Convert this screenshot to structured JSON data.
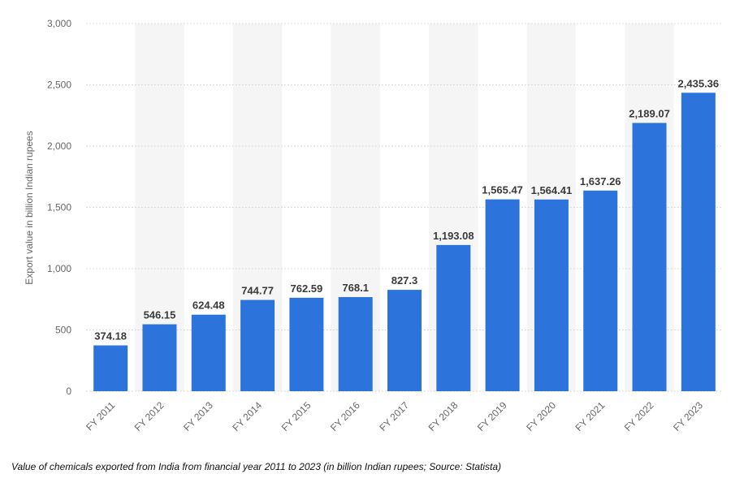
{
  "chart_data": {
    "type": "bar",
    "categories": [
      "FY 2011",
      "FY 2012",
      "FY 2013",
      "FY 2014",
      "FY 2015",
      "FY 2016",
      "FY 2017",
      "FY 2018",
      "FY 2019",
      "FY 2020",
      "FY 2021",
      "FY 2022",
      "FY 2023"
    ],
    "values": [
      374.18,
      546.15,
      624.48,
      744.77,
      762.59,
      768.1,
      827.3,
      1193.08,
      1565.47,
      1564.41,
      1637.26,
      2189.07,
      2435.36
    ],
    "data_labels": [
      "374.18",
      "546.15",
      "624.48",
      "744.77",
      "762.59",
      "768.1",
      "827.3",
      "1,193.08",
      "1,565.47",
      "1,564.41",
      "1,637.26",
      "2,189.07",
      "2,435.36"
    ],
    "ylabel": "Export value in billion Indian rupees",
    "xlabel": "",
    "ylim": [
      0,
      3000
    ],
    "yticks": [
      0,
      500,
      1000,
      1500,
      2000,
      2500,
      3000
    ],
    "ytick_labels": [
      "0",
      "500",
      "1,000",
      "1,500",
      "2,000",
      "2,500",
      "3,000"
    ],
    "grid": true,
    "legend": "none",
    "bar_color": "#2c74dc",
    "alt_band_color": "#f5f5f5"
  },
  "caption": "Value of chemicals exported from India from financial year 2011 to 2023 (in billion Indian rupees; Source: Statista)"
}
